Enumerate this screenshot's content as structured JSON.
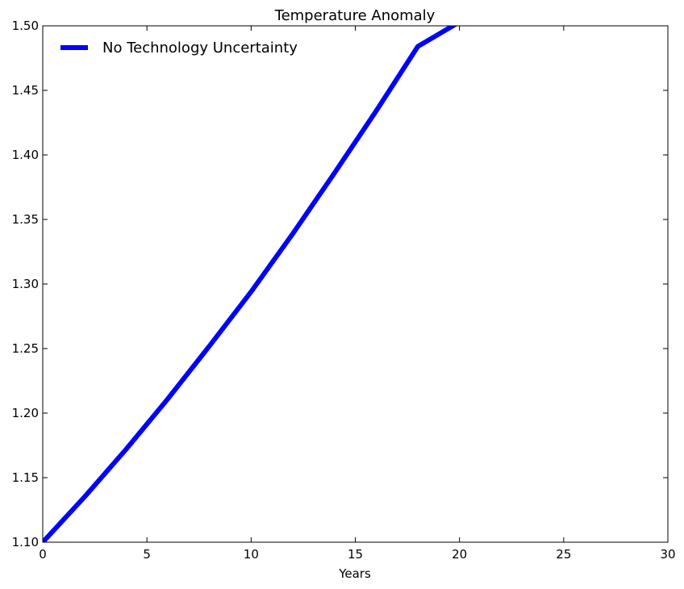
{
  "chart_data": {
    "type": "line",
    "title": "Temperature Anomaly",
    "xlabel": "Years",
    "ylabel": "",
    "xlim": [
      0,
      30
    ],
    "ylim": [
      1.1,
      1.5
    ],
    "xticks": [
      "0",
      "5",
      "10",
      "15",
      "20",
      "25",
      "30"
    ],
    "yticks": [
      "1.10",
      "1.15",
      "1.20",
      "1.25",
      "1.30",
      "1.35",
      "1.40",
      "1.45",
      "1.50"
    ],
    "grid": false,
    "legend_position": "top-left",
    "series": [
      {
        "name": "No Technology Uncertainty",
        "color": "#0000ff",
        "x": [
          0,
          2,
          4,
          6,
          8,
          10,
          12,
          14,
          16,
          18,
          20
        ],
        "y": [
          1.1,
          1.135,
          1.172,
          1.211,
          1.252,
          1.294,
          1.339,
          1.386,
          1.434,
          1.484,
          1.503
        ]
      }
    ]
  }
}
